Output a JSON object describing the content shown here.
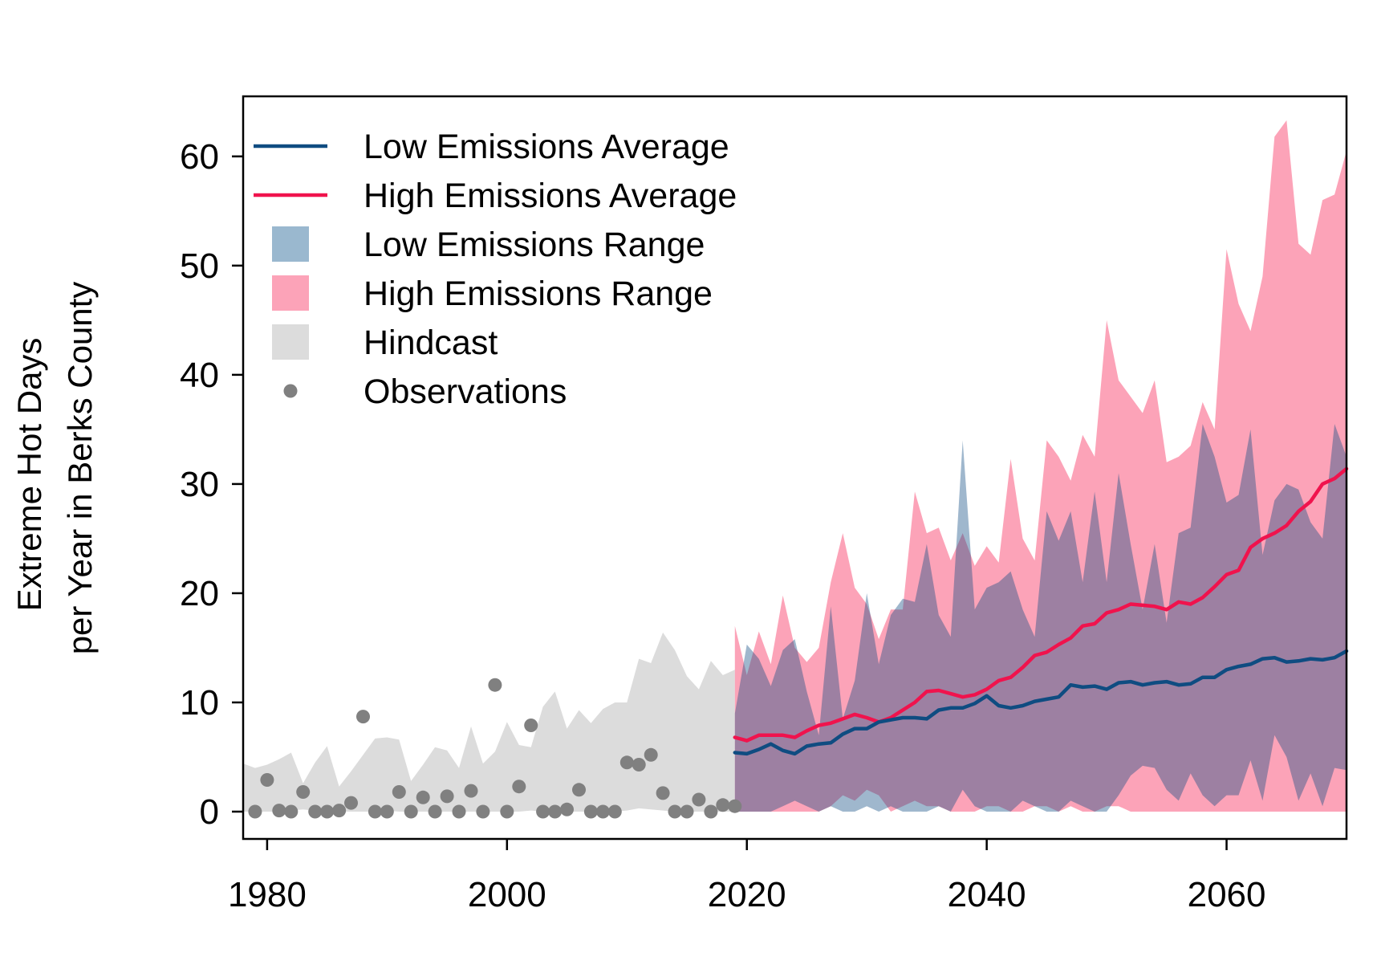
{
  "chart_data": {
    "type": "area",
    "ylabel": [
      "Extreme Hot Days",
      "per Year in Berks County"
    ],
    "xlim": [
      1978,
      2070
    ],
    "ylim": [
      -2.5,
      65.5
    ],
    "x_ticks": [
      "1980",
      "2000",
      "2020",
      "2040",
      "2060"
    ],
    "y_ticks": [
      "0",
      "10",
      "20",
      "30",
      "40",
      "50",
      "60"
    ],
    "legend": {
      "position": "top-left",
      "items": [
        {
          "label": "Low Emissions Average",
          "kind": "line",
          "color": "#0f4c81"
        },
        {
          "label": "High Emissions Average",
          "kind": "line",
          "color": "#f0134d"
        },
        {
          "label": "Low Emissions Range",
          "kind": "fill",
          "color": "#9ab8cf"
        },
        {
          "label": "High Emissions Range",
          "kind": "fill",
          "color": "#fca3b8"
        },
        {
          "label": "Hindcast",
          "kind": "fill",
          "color": "#dcdcdc"
        },
        {
          "label": "Observations",
          "kind": "point",
          "color": "#808080"
        }
      ]
    },
    "colors": {
      "low_avg": "#0f4c81",
      "high_avg": "#f0134d",
      "low_range": "rgba(15,76,129,0.4)",
      "high_range": "rgba(250,120,150,0.68)",
      "hindcast": "#dcdcdc",
      "observations": "#808080"
    },
    "hindcast": {
      "x": [
        1978,
        1979,
        1980,
        1981,
        1982,
        1983,
        1984,
        1985,
        1986,
        1987,
        1988,
        1989,
        1990,
        1991,
        1992,
        1993,
        1994,
        1995,
        1996,
        1997,
        1998,
        1999,
        2000,
        2001,
        2002,
        2003,
        2004,
        2005,
        2006,
        2007,
        2008,
        2009,
        2010,
        2011,
        2012,
        2013,
        2014,
        2015,
        2016,
        2017,
        2018,
        2019
      ],
      "upper": [
        4.4,
        4,
        4.3,
        4.8,
        5.4,
        2.6,
        4.5,
        6,
        2.3,
        3.7,
        5.2,
        6.7,
        6.8,
        6.6,
        2.8,
        4.3,
        5.9,
        5.6,
        4,
        7.8,
        4.4,
        5.5,
        8.2,
        6.1,
        5.9,
        9.6,
        11,
        7.6,
        9.3,
        8.1,
        9.4,
        10,
        10,
        14,
        13.6,
        16.4,
        14.8,
        12.4,
        11.2,
        13.8,
        12.5,
        13
      ],
      "lower": [
        0,
        0,
        0,
        0,
        0.1,
        0.2,
        0.1,
        0.1,
        0,
        0,
        0,
        0,
        0.1,
        0,
        0,
        0,
        0,
        0,
        0,
        0,
        0,
        0,
        0,
        0,
        0.1,
        0,
        0,
        0,
        0,
        0,
        0,
        0,
        0.1,
        0.3,
        0.2,
        0.1,
        0,
        0,
        0,
        0,
        0,
        0
      ]
    },
    "observations": {
      "x": [
        1979,
        1980,
        1981,
        1982,
        1983,
        1984,
        1985,
        1986,
        1987,
        1988,
        1989,
        1990,
        1991,
        1992,
        1993,
        1994,
        1995,
        1996,
        1997,
        1998,
        1999,
        2000,
        2001,
        2002,
        2003,
        2004,
        2005,
        2006,
        2007,
        2008,
        2009,
        2010,
        2011,
        2012,
        2013,
        2014,
        2015,
        2016,
        2017,
        2018,
        2019
      ],
      "y": [
        0,
        2.9,
        0.1,
        0,
        1.8,
        0,
        0,
        0.1,
        0.8,
        8.7,
        0,
        0,
        1.8,
        0,
        1.3,
        0,
        1.4,
        0,
        1.9,
        0,
        11.6,
        0,
        2.3,
        7.9,
        0,
        0,
        0.2,
        2,
        0,
        0,
        0,
        4.5,
        4.3,
        5.2,
        1.7,
        0,
        0,
        1.1,
        0,
        0.6,
        0.5
      ]
    },
    "low_range": {
      "x": [
        2019,
        2020,
        2021,
        2022,
        2023,
        2024,
        2025,
        2026,
        2027,
        2028,
        2029,
        2030,
        2031,
        2032,
        2033,
        2034,
        2035,
        2036,
        2037,
        2038,
        2039,
        2040,
        2041,
        2042,
        2043,
        2044,
        2045,
        2046,
        2047,
        2048,
        2049,
        2050,
        2051,
        2052,
        2053,
        2054,
        2055,
        2056,
        2057,
        2058,
        2059,
        2060,
        2061,
        2062,
        2063,
        2064,
        2065,
        2066,
        2067,
        2068,
        2069,
        2070
      ],
      "upper": [
        9,
        15.3,
        14,
        11.5,
        14.8,
        15.8,
        11,
        7,
        18.8,
        8.5,
        12,
        20,
        13.5,
        18,
        19.5,
        19.2,
        24.5,
        18,
        16,
        34,
        18.5,
        20.5,
        21,
        22,
        18.5,
        16,
        27.5,
        24.8,
        27.5,
        21,
        29.3,
        21,
        31,
        24.5,
        18.5,
        24.5,
        17.3,
        25.5,
        26,
        35.5,
        32.5,
        28.3,
        29,
        35,
        23.5,
        28.5,
        30,
        29.5,
        26.5,
        25,
        35.5,
        32.5
      ],
      "lower": [
        0,
        0,
        0,
        0,
        0.5,
        1,
        0.5,
        0,
        0.5,
        0,
        0,
        0.5,
        0,
        0.5,
        0,
        0,
        0,
        0.5,
        0,
        2,
        0.5,
        0,
        0,
        0,
        1,
        0.5,
        0,
        0,
        1,
        0.5,
        0,
        0,
        1.5,
        3.3,
        4.2,
        4,
        2,
        1,
        3.5,
        1.5,
        0.5,
        1.5,
        1.5,
        4.7,
        1,
        7,
        5,
        1,
        3.5,
        0.5,
        4,
        3.8
      ]
    },
    "high_range": {
      "x": [
        2019,
        2020,
        2021,
        2022,
        2023,
        2024,
        2025,
        2026,
        2027,
        2028,
        2029,
        2030,
        2031,
        2032,
        2033,
        2034,
        2035,
        2036,
        2037,
        2038,
        2039,
        2040,
        2041,
        2042,
        2043,
        2044,
        2045,
        2046,
        2047,
        2048,
        2049,
        2050,
        2051,
        2052,
        2053,
        2054,
        2055,
        2056,
        2057,
        2058,
        2059,
        2060,
        2061,
        2062,
        2063,
        2064,
        2065,
        2066,
        2067,
        2068,
        2069,
        2070
      ],
      "upper": [
        17,
        12.5,
        16.5,
        13.5,
        19.8,
        15,
        13.7,
        15,
        21,
        25.5,
        20.5,
        19,
        15.8,
        18.5,
        18.5,
        29.3,
        25.5,
        26,
        23,
        25.5,
        22.5,
        24.3,
        22.8,
        32.3,
        25,
        23,
        34,
        32.5,
        30.3,
        34.5,
        32.5,
        45,
        39.5,
        38,
        36.5,
        39.5,
        32,
        32.5,
        33.5,
        37.5,
        35,
        51.5,
        46.5,
        44,
        49,
        61.8,
        63.3,
        52,
        51,
        56,
        56.5,
        60.5
      ],
      "lower": [
        0,
        0,
        0,
        0,
        0,
        0,
        0,
        0,
        0.5,
        1.5,
        1,
        2,
        1.5,
        0,
        0.5,
        1,
        0.5,
        0.5,
        0,
        0,
        0,
        0.5,
        0.5,
        0,
        0,
        0.5,
        0.5,
        0,
        0.5,
        0,
        0,
        0.5,
        0.5,
        0,
        0,
        0,
        0,
        0,
        0,
        0,
        0,
        0,
        0,
        0,
        0,
        0,
        0,
        0,
        0,
        0,
        0,
        0
      ]
    },
    "series": [
      {
        "name": "Low Emissions Average",
        "x": [
          2019,
          2020,
          2021,
          2022,
          2023,
          2024,
          2025,
          2026,
          2027,
          2028,
          2029,
          2030,
          2031,
          2032,
          2033,
          2034,
          2035,
          2036,
          2037,
          2038,
          2039,
          2040,
          2041,
          2042,
          2043,
          2044,
          2045,
          2046,
          2047,
          2048,
          2049,
          2050,
          2051,
          2052,
          2053,
          2054,
          2055,
          2056,
          2057,
          2058,
          2059,
          2060,
          2061,
          2062,
          2063,
          2064,
          2065,
          2066,
          2067,
          2068,
          2069,
          2070
        ],
        "values": [
          5.4,
          5.3,
          5.7,
          6.2,
          5.6,
          5.3,
          6,
          6.2,
          6.3,
          7.1,
          7.6,
          7.6,
          8.2,
          8.4,
          8.6,
          8.6,
          8.5,
          9.3,
          9.5,
          9.5,
          9.9,
          10.6,
          9.7,
          9.5,
          9.7,
          10.1,
          10.3,
          10.5,
          11.6,
          11.4,
          11.5,
          11.2,
          11.8,
          11.9,
          11.6,
          11.8,
          11.9,
          11.6,
          11.7,
          12.3,
          12.3,
          13,
          13.3,
          13.5,
          14,
          14.1,
          13.7,
          13.8,
          14,
          13.9,
          14.1,
          14.7
        ]
      },
      {
        "name": "High Emissions Average",
        "x": [
          2019,
          2020,
          2021,
          2022,
          2023,
          2024,
          2025,
          2026,
          2027,
          2028,
          2029,
          2030,
          2031,
          2032,
          2033,
          2034,
          2035,
          2036,
          2037,
          2038,
          2039,
          2040,
          2041,
          2042,
          2043,
          2044,
          2045,
          2046,
          2047,
          2048,
          2049,
          2050,
          2051,
          2052,
          2053,
          2054,
          2055,
          2056,
          2057,
          2058,
          2059,
          2060,
          2061,
          2062,
          2063,
          2064,
          2065,
          2066,
          2067,
          2068,
          2069,
          2070
        ],
        "values": [
          6.8,
          6.5,
          7,
          7,
          7,
          6.8,
          7.4,
          7.9,
          8.1,
          8.5,
          8.9,
          8.6,
          8.2,
          8.6,
          9.3,
          10,
          11,
          11.1,
          10.8,
          10.5,
          10.7,
          11.2,
          12,
          12.3,
          13.2,
          14.3,
          14.6,
          15.3,
          15.9,
          17,
          17.2,
          18.2,
          18.5,
          19,
          18.9,
          18.8,
          18.5,
          19.2,
          19,
          19.6,
          20.6,
          21.7,
          22.1,
          24.2,
          25,
          25.5,
          26.2,
          27.5,
          28.4,
          30,
          30.5,
          31.4
        ]
      }
    ]
  }
}
